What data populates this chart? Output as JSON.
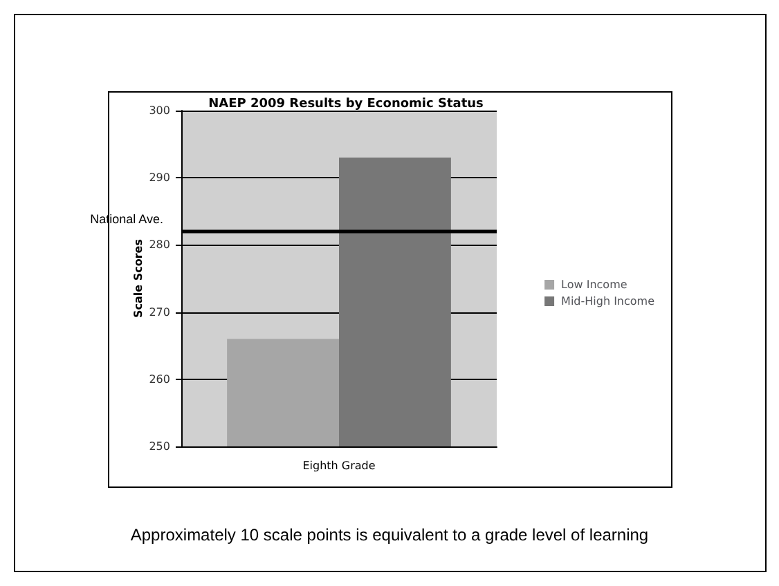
{
  "chart_data": {
    "type": "bar",
    "title": "NAEP 2009 Results by Economic Status",
    "ylabel": "Scale Scores",
    "categories": [
      "Eighth Grade"
    ],
    "series": [
      {
        "name": "Low Income",
        "color": "#a6a6a6",
        "values": [
          266
        ]
      },
      {
        "name": "Mid-High Income",
        "color": "#777777",
        "values": [
          293
        ]
      }
    ],
    "ylim": [
      250,
      300
    ],
    "yticks": [
      250,
      260,
      270,
      280,
      290,
      300
    ],
    "grid": "y",
    "legend": "right",
    "ref_lines": [
      {
        "axis": "y",
        "value": 282,
        "label": "National Ave.",
        "color": "#000000"
      }
    ],
    "annotations": [
      "Approximately 10 scale points is equivalent to a grade level of learning"
    ]
  }
}
